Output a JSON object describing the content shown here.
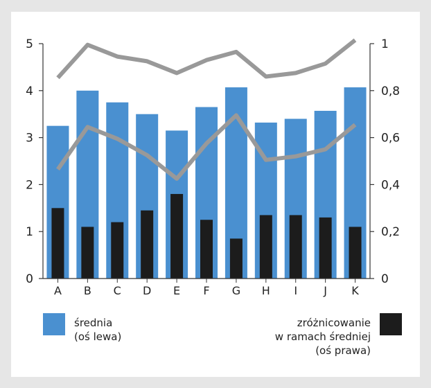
{
  "chart_data": {
    "type": "bar",
    "categories": [
      "A",
      "B",
      "C",
      "D",
      "E",
      "F",
      "G",
      "H",
      "I",
      "J",
      "K"
    ],
    "left_axis": {
      "min": 0,
      "max": 5,
      "ticks": [
        "0",
        "1",
        "2",
        "3",
        "4",
        "5"
      ]
    },
    "right_axis": {
      "min": 0,
      "max": 1,
      "ticks": [
        "0",
        "0,2",
        "0,4",
        "0,6",
        "0,8",
        "1"
      ]
    },
    "series": [
      {
        "name": "średnia (oś lewa)",
        "kind": "bar",
        "axis": "left",
        "color": "#4a90d0",
        "values": [
          3.25,
          4.0,
          3.75,
          3.5,
          3.15,
          3.65,
          4.07,
          3.32,
          3.4,
          3.57,
          4.07
        ]
      },
      {
        "name": "zróżnicowanie w ramach średniej (oś prawa)",
        "kind": "bar",
        "axis": "right",
        "color": "#1c1c1c",
        "values": [
          0.3,
          0.22,
          0.24,
          0.29,
          0.36,
          0.25,
          0.17,
          0.27,
          0.27,
          0.26,
          0.22
        ]
      },
      {
        "kind": "line",
        "axis": "right",
        "color": "#999999",
        "values": [
          0.855,
          0.995,
          0.945,
          0.925,
          0.875,
          0.93,
          0.965,
          0.86,
          0.875,
          0.915,
          1.015
        ]
      },
      {
        "kind": "line",
        "axis": "right",
        "color": "#999999",
        "values": [
          0.465,
          0.645,
          0.595,
          0.525,
          0.425,
          0.575,
          0.695,
          0.505,
          0.52,
          0.55,
          0.655
        ]
      }
    ],
    "grid": false,
    "legend_position": "bottom"
  },
  "legend": {
    "left": {
      "lines": [
        "średnia",
        "(oś lewa)"
      ],
      "color": "#4a90d0"
    },
    "right": {
      "lines": [
        "zróżnicowanie",
        "w ramach średniej",
        "(oś prawa)"
      ],
      "color": "#1c1c1c"
    }
  }
}
